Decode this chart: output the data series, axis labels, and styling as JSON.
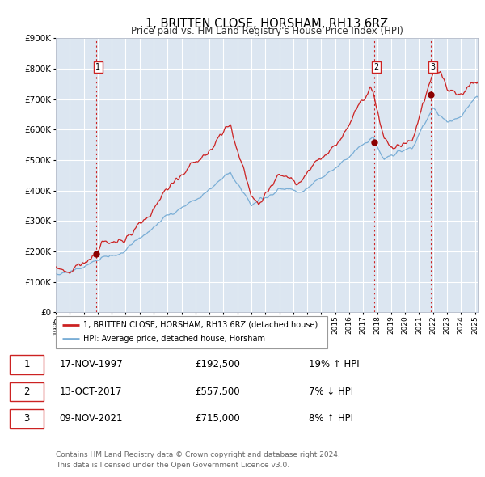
{
  "title": "1, BRITTEN CLOSE, HORSHAM, RH13 6RZ",
  "subtitle": "Price paid vs. HM Land Registry's House Price Index (HPI)",
  "ylim": [
    0,
    900000
  ],
  "yticks": [
    0,
    100000,
    200000,
    300000,
    400000,
    500000,
    600000,
    700000,
    800000,
    900000
  ],
  "ytick_labels": [
    "£0",
    "£100K",
    "£200K",
    "£300K",
    "£400K",
    "£500K",
    "£600K",
    "£700K",
    "£800K",
    "£900K"
  ],
  "hpi_color": "#7aaed6",
  "price_color": "#cc2222",
  "plot_bg": "#dce6f1",
  "sale_dates": [
    1997.88,
    2017.78,
    2021.85
  ],
  "sale_prices": [
    192500,
    557500,
    715000
  ],
  "sale_labels": [
    "1",
    "2",
    "3"
  ],
  "vline_colors": [
    "#cc2222",
    "#cc2222",
    "#cc2222"
  ],
  "legend_house_label": "1, BRITTEN CLOSE, HORSHAM, RH13 6RZ (detached house)",
  "legend_hpi_label": "HPI: Average price, detached house, Horsham",
  "table_rows": [
    [
      "1",
      "17-NOV-1997",
      "£192,500",
      "19% ↑ HPI"
    ],
    [
      "2",
      "13-OCT-2017",
      "£557,500",
      "7% ↓ HPI"
    ],
    [
      "3",
      "09-NOV-2021",
      "£715,000",
      "8% ↑ HPI"
    ]
  ],
  "footer_line1": "Contains HM Land Registry data © Crown copyright and database right 2024.",
  "footer_line2": "This data is licensed under the Open Government Licence v3.0.",
  "xmin": 1995.0,
  "xmax": 2025.2,
  "xticks": [
    1995,
    1996,
    1997,
    1998,
    1999,
    2000,
    2001,
    2002,
    2003,
    2004,
    2005,
    2006,
    2007,
    2008,
    2009,
    2010,
    2011,
    2012,
    2013,
    2014,
    2015,
    2016,
    2017,
    2018,
    2019,
    2020,
    2021,
    2022,
    2023,
    2024,
    2025
  ]
}
